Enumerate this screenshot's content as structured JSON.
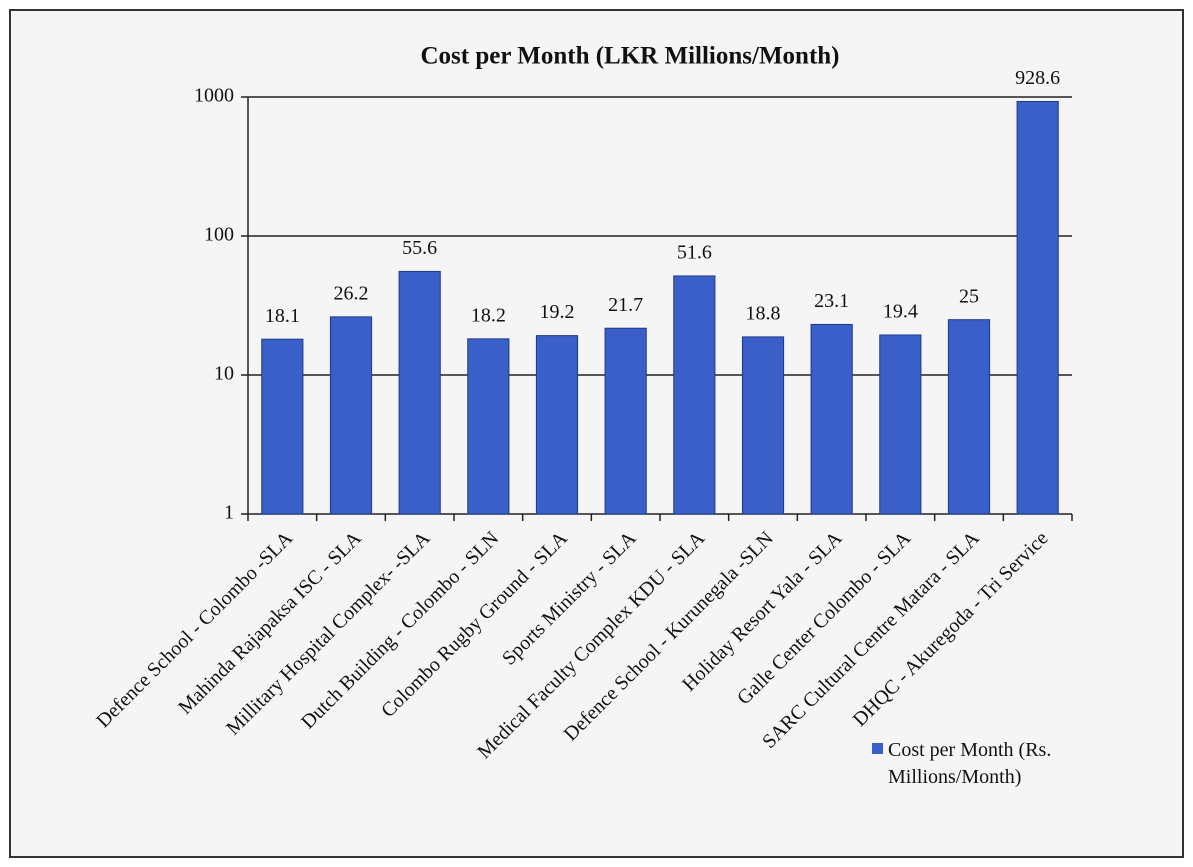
{
  "chart_data": {
    "type": "bar",
    "title": "Cost per Month (LKR Millions/Month)",
    "categories": [
      "Defence School - Colombo -SLA",
      "Mahinda Rajapaksa ISC - SLA",
      "Millitary Hospital Complex- -SLA",
      "Dutch Building - Colombo - SLN",
      "Colombo Rugby Ground - SLA",
      "Sports Ministry - SLA",
      "Medical Faculty Complex KDU - SLA",
      "Defence School - Kurunegala -SLN",
      "Holiday Resort Yala - SLA",
      "Galle Center Colombo - SLA",
      "SARC Cultural Centre Matara - SLA",
      "DHQC - Akuregoda - Tri Service"
    ],
    "series": [
      {
        "name": "Cost per Month (Rs. Millions/Month)",
        "color": "#3a5fc8",
        "values": [
          18.1,
          26.2,
          55.6,
          18.2,
          19.2,
          21.7,
          51.6,
          18.8,
          23.1,
          19.4,
          25,
          928.6
        ]
      }
    ],
    "ylim": [
      1,
      1000
    ],
    "yticks": [
      1,
      10,
      100,
      1000
    ],
    "log": true,
    "grid": true,
    "legend": "bottom-right"
  }
}
